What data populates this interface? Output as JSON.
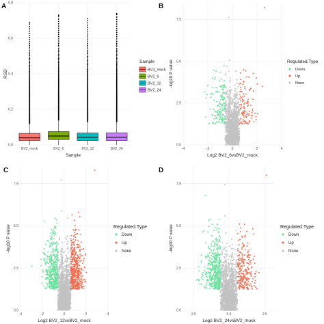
{
  "panels": [
    {
      "id": "panel-a",
      "label": "A"
    },
    {
      "id": "panel-b",
      "label": "B"
    },
    {
      "id": "panel-c",
      "label": "C"
    },
    {
      "id": "panel-d",
      "label": "D"
    }
  ],
  "colors": {
    "down": "#66e29a",
    "up": "#f26b4f",
    "none": "#c2c2c2",
    "bv2_mock": "#f8766d",
    "bv2_6": "#7cae00",
    "bv2_12": "#00bfc4",
    "bv2_24": "#c77cff",
    "panel_bg": "#ffffff",
    "grid": "#ececec"
  },
  "chart_data": [
    {
      "panel": "A",
      "type": "box",
      "xlabel": "Sample",
      "ylabel": "RSD",
      "ylim": [
        0,
        0.8
      ],
      "yticks": [
        "0.0",
        "0.2",
        "0.4",
        "0.6",
        "0.8"
      ],
      "categories": [
        "BV2_mock",
        "BV2_6",
        "BV2_12",
        "BV2_24"
      ],
      "boxes": [
        {
          "q1": 0.025,
          "median": 0.04,
          "q3": 0.065,
          "whisker_low": 0.0,
          "whisker_high": 0.12,
          "outlier_max": 0.69
        },
        {
          "q1": 0.03,
          "median": 0.05,
          "q3": 0.075,
          "whisker_low": 0.0,
          "whisker_high": 0.14,
          "outlier_max": 0.73
        },
        {
          "q1": 0.025,
          "median": 0.043,
          "q3": 0.067,
          "whisker_low": 0.0,
          "whisker_high": 0.13,
          "outlier_max": 0.71
        },
        {
          "q1": 0.025,
          "median": 0.043,
          "q3": 0.068,
          "whisker_low": 0.0,
          "whisker_high": 0.13,
          "outlier_max": 0.74
        }
      ],
      "legend": {
        "title": "Sample",
        "entries": [
          "BV2_mock",
          "BV2_6",
          "BV2_12",
          "BV2_24"
        ]
      },
      "grid": true
    },
    {
      "panel": "B",
      "type": "scatter",
      "subtype": "volcano",
      "xlabel": "Log2 BV2_6vsBV2_mock",
      "ylabel": "-log10 P value",
      "xlim": [
        -4,
        4
      ],
      "ylim": [
        0,
        8.5
      ],
      "xticks": [
        "-4",
        "-2",
        "0",
        "2",
        "4"
      ],
      "yticks": [
        "0.0",
        "2.5",
        "5.0",
        "7.5"
      ],
      "fc_threshold": 0.6,
      "points_down": 140,
      "points_up": 110,
      "points_none": 1400,
      "max_y": 8.2,
      "max_x": 2.9,
      "legend": {
        "title": "Regulated.Type",
        "entries": [
          "Down",
          "Up",
          "None"
        ]
      },
      "grid": true
    },
    {
      "panel": "C",
      "type": "scatter",
      "subtype": "volcano",
      "xlabel": "Log2 BV2_12vsBV2_mock",
      "ylabel": "-log10 P value",
      "xlim": [
        -4,
        4
      ],
      "ylim": [
        0,
        8.5
      ],
      "xticks": [
        "-4",
        "-2",
        "0",
        "2",
        "4"
      ],
      "yticks": [
        "0.0",
        "2.5",
        "5.0",
        "7.5"
      ],
      "fc_threshold": 0.6,
      "points_down": 420,
      "points_up": 460,
      "points_none": 1600,
      "max_y": 8.3,
      "max_x": 3.1,
      "legend": {
        "title": "Regulated.Type",
        "entries": [
          "Down",
          "Up",
          "None"
        ]
      },
      "grid": true
    },
    {
      "panel": "D",
      "type": "scatter",
      "subtype": "volcano",
      "xlabel": "Log2 BV2_24vsBV2_mock",
      "ylabel": "-log10 P value",
      "xlim": [
        -3.2,
        3.2
      ],
      "ylim": [
        0,
        8.5
      ],
      "xticks": [
        "-2.5",
        "0.0",
        "2.5"
      ],
      "yticks": [
        "0.0",
        "2.5",
        "5.0",
        "7.5"
      ],
      "fc_threshold": 0.6,
      "points_down": 420,
      "points_up": 230,
      "points_none": 1600,
      "max_y": 8.0,
      "max_x": 2.9,
      "legend": {
        "title": "Regulated.Type",
        "entries": [
          "Down",
          "Up",
          "None"
        ]
      },
      "grid": true
    }
  ]
}
